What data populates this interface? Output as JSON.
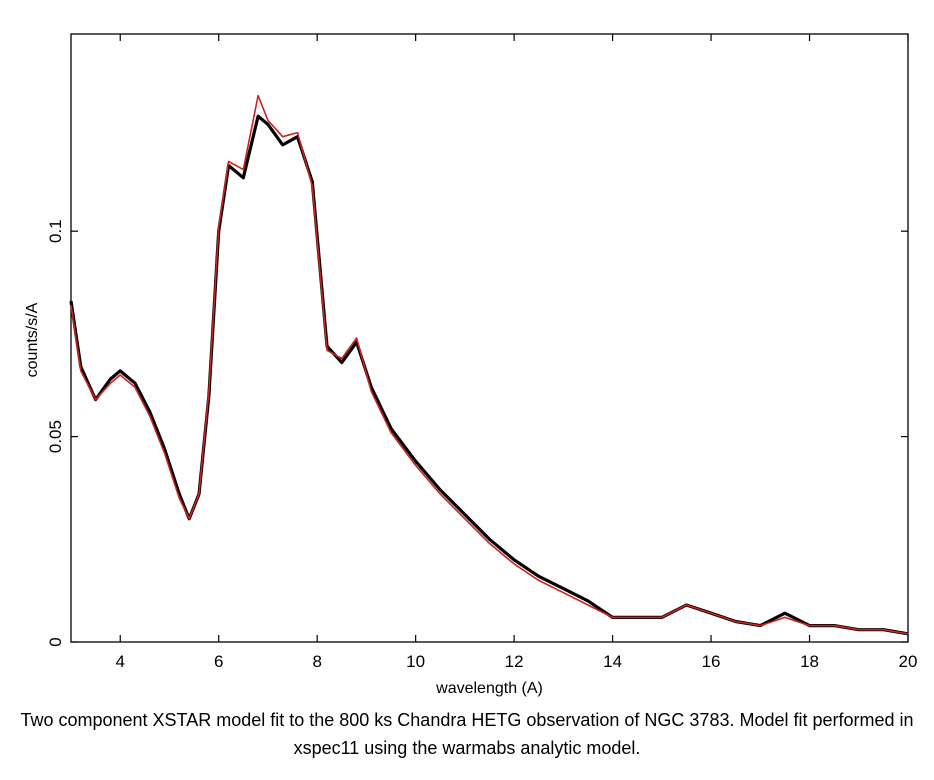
{
  "caption": "Two component XSTAR model fit to the 800 ks Chandra HETG observation of NGC 3783. Model fit performed in xspec11 using the warmabs analytic model.",
  "chart_data": {
    "type": "line",
    "xlabel": "wavelength (A)",
    "ylabel": "counts/s/A",
    "xlim": [
      3,
      20
    ],
    "ylim": [
      0,
      0.148
    ],
    "xticks": [
      4,
      6,
      8,
      10,
      12,
      14,
      16,
      18,
      20
    ],
    "xtick_labels": [
      "4",
      "6",
      "8",
      "10",
      "12",
      "14",
      "16",
      "18",
      "20"
    ],
    "yticks": [
      0,
      0.05,
      0.1
    ],
    "ytick_labels": [
      "0",
      "0.05",
      "0.1"
    ],
    "grid": false,
    "colors": {
      "data": "#000000",
      "model": "#cc2222"
    },
    "series": [
      {
        "style": "data",
        "x": [
          3.0,
          3.2,
          3.5,
          3.8,
          4.0,
          4.3,
          4.6,
          4.9,
          5.2,
          5.4,
          5.6,
          5.8,
          6.0,
          6.2,
          6.5,
          6.8,
          7.0,
          7.3,
          7.6,
          7.9,
          8.2,
          8.5,
          8.8,
          9.1,
          9.5,
          10.0,
          10.5,
          11.0,
          11.5,
          12.0,
          12.5,
          13.0,
          13.5,
          14.0,
          14.5,
          15.0,
          15.5,
          16.0,
          16.5,
          17.0,
          17.5,
          18.0,
          18.5,
          19.0,
          19.5,
          20.0
        ],
        "y": [
          0.083,
          0.067,
          0.059,
          0.064,
          0.066,
          0.063,
          0.056,
          0.047,
          0.036,
          0.03,
          0.036,
          0.06,
          0.1,
          0.116,
          0.113,
          0.128,
          0.126,
          0.121,
          0.123,
          0.112,
          0.072,
          0.068,
          0.073,
          0.062,
          0.052,
          0.044,
          0.037,
          0.031,
          0.025,
          0.02,
          0.016,
          0.013,
          0.01,
          0.006,
          0.006,
          0.006,
          0.009,
          0.007,
          0.005,
          0.004,
          0.007,
          0.004,
          0.004,
          0.003,
          0.003,
          0.002
        ]
      },
      {
        "style": "model",
        "x": [
          3.0,
          3.2,
          3.5,
          3.8,
          4.0,
          4.3,
          4.6,
          4.9,
          5.2,
          5.4,
          5.6,
          5.8,
          6.0,
          6.2,
          6.5,
          6.8,
          7.0,
          7.3,
          7.6,
          7.9,
          8.2,
          8.5,
          8.8,
          9.1,
          9.5,
          10.0,
          10.5,
          11.0,
          11.5,
          12.0,
          12.5,
          13.0,
          13.5,
          14.0,
          14.5,
          15.0,
          15.5,
          16.0,
          16.5,
          17.0,
          17.5,
          18.0,
          18.5,
          19.0,
          19.5,
          20.0
        ],
        "y": [
          0.082,
          0.066,
          0.059,
          0.063,
          0.065,
          0.062,
          0.055,
          0.046,
          0.035,
          0.03,
          0.036,
          0.061,
          0.101,
          0.117,
          0.115,
          0.133,
          0.127,
          0.123,
          0.124,
          0.111,
          0.071,
          0.069,
          0.074,
          0.061,
          0.051,
          0.043,
          0.036,
          0.03,
          0.024,
          0.019,
          0.015,
          0.012,
          0.009,
          0.006,
          0.006,
          0.006,
          0.009,
          0.007,
          0.005,
          0.004,
          0.006,
          0.004,
          0.004,
          0.003,
          0.003,
          0.002
        ]
      }
    ]
  }
}
